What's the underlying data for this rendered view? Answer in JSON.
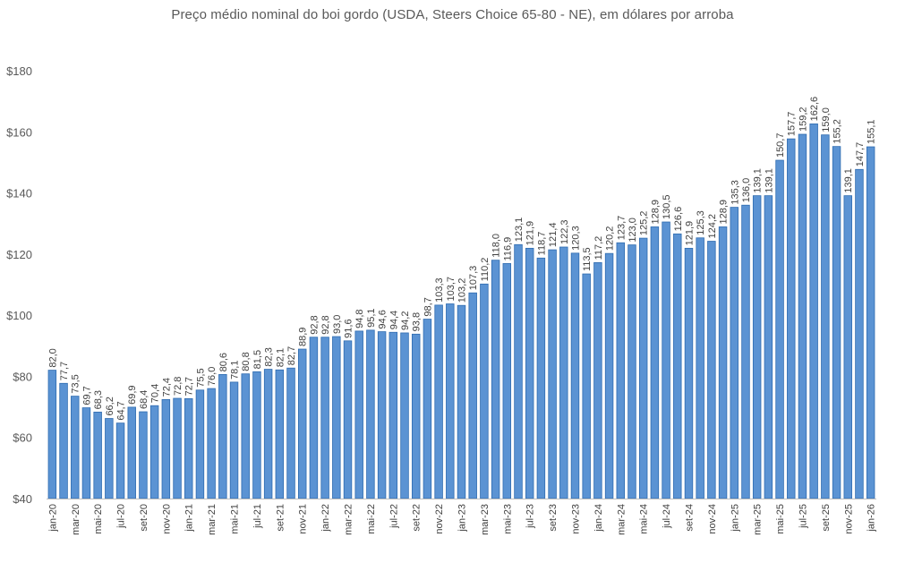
{
  "chart_data": {
    "type": "bar",
    "title": "Preço médio nominal do boi gordo (USDA, Steers Choice 65-80 - NE), em dólares por arroba",
    "xlabel": "",
    "ylabel": "",
    "ylim": [
      40,
      180
    ],
    "yticks": [
      40,
      60,
      80,
      100,
      120,
      140,
      160,
      180
    ],
    "ytick_labels": [
      "$40",
      "$60",
      "$80",
      "$100",
      "$120",
      "$140",
      "$160",
      "$180"
    ],
    "bar_color": "#5B93D3",
    "bar_edge_color": "#2E6BB0",
    "categories": [
      "jan-20",
      "fev-20",
      "mar-20",
      "abr-20",
      "mai-20",
      "jun-20",
      "jul-20",
      "ago-20",
      "set-20",
      "out-20",
      "nov-20",
      "dez-20",
      "jan-21",
      "fev-21",
      "mar-21",
      "abr-21",
      "mai-21",
      "jun-21",
      "jul-21",
      "ago-21",
      "set-21",
      "out-21",
      "nov-21",
      "dez-21",
      "jan-22",
      "fev-22",
      "mar-22",
      "abr-22",
      "mai-22",
      "jun-22",
      "jul-22",
      "ago-22",
      "set-22",
      "out-22",
      "nov-22",
      "dez-22",
      "jan-23",
      "fev-23",
      "mar-23",
      "abr-23",
      "mai-23",
      "jun-23",
      "jul-23",
      "ago-23",
      "set-23",
      "out-23",
      "nov-23",
      "dez-23",
      "jan-24",
      "fev-24",
      "mar-24",
      "abr-24",
      "mai-24",
      "jun-24",
      "jul-24",
      "ago-24",
      "set-24",
      "out-24",
      "nov-24",
      "dez-24",
      "jan-25",
      "fev-25",
      "mar-25",
      "abr-25",
      "mai-25",
      "jun-25",
      "jul-25",
      "ago-25",
      "set-25",
      "out-25",
      "nov-25",
      "dez-25",
      "jan-26"
    ],
    "values": [
      82.0,
      77.7,
      73.5,
      69.7,
      68.3,
      66.2,
      64.7,
      69.9,
      68.4,
      70.4,
      72.4,
      72.8,
      72.7,
      75.5,
      76.0,
      80.6,
      78.1,
      80.8,
      81.5,
      82.3,
      82.1,
      82.7,
      88.9,
      92.8,
      92.8,
      93.0,
      91.6,
      94.8,
      95.1,
      94.6,
      94.4,
      94.2,
      93.8,
      98.7,
      103.3,
      103.7,
      103.2,
      107.3,
      110.2,
      118.0,
      116.9,
      123.1,
      121.9,
      118.7,
      121.4,
      122.3,
      120.3,
      113.5,
      117.2,
      120.2,
      123.7,
      123.0,
      125.2,
      128.9,
      130.5,
      126.6,
      121.9,
      125.3,
      124.2,
      128.9,
      135.3,
      136.0,
      139.1,
      139.1,
      150.7,
      157.7,
      159.2,
      162.6,
      159.0,
      155.2,
      139.1,
      147.7,
      155.1
    ],
    "value_labels": [
      "82,0",
      "77,7",
      "73,5",
      "69,7",
      "68,3",
      "66,2",
      "64,7",
      "69,9",
      "68,4",
      "70,4",
      "72,4",
      "72,8",
      "72,7",
      "75,5",
      "76,0",
      "80,6",
      "78,1",
      "80,8",
      "81,5",
      "82,3",
      "82,1",
      "82,7",
      "88,9",
      "92,8",
      "92,8",
      "93,0",
      "91,6",
      "94,8",
      "95,1",
      "94,6",
      "94,4",
      "94,2",
      "93,8",
      "98,7",
      "103,3",
      "103,7",
      "103,2",
      "107,3",
      "110,2",
      "118,0",
      "116,9",
      "123,1",
      "121,9",
      "118,7",
      "121,4",
      "122,3",
      "120,3",
      "113,5",
      "117,2",
      "120,2",
      "123,7",
      "123,0",
      "125,2",
      "128,9",
      "130,5",
      "126,6",
      "121,9",
      "125,3",
      "124,2",
      "128,9",
      "135,3",
      "136,0",
      "139,1",
      "139,1",
      "150,7",
      "157,7",
      "159,2",
      "162,6",
      "159,0",
      "155,2",
      "139,1",
      "147,7",
      "155,1"
    ],
    "xtick_labels": [
      "jan-20",
      "",
      "mar-20",
      "",
      "mai-20",
      "",
      "jul-20",
      "",
      "set-20",
      "",
      "nov-20",
      "",
      "jan-21",
      "",
      "mar-21",
      "",
      "mai-21",
      "",
      "jul-21",
      "",
      "set-21",
      "",
      "nov-21",
      "",
      "jan-22",
      "",
      "mar-22",
      "",
      "mai-22",
      "",
      "jul-22",
      "",
      "set-22",
      "",
      "nov-22",
      "",
      "jan-23",
      "",
      "mar-23",
      "",
      "mai-23",
      "",
      "jul-23",
      "",
      "set-23",
      "",
      "nov-23",
      "",
      "jan-24",
      "",
      "mar-24",
      "",
      "mai-24",
      "",
      "jul-24",
      "",
      "set-24",
      "",
      "nov-24",
      "",
      "jan-25",
      "",
      "mar-25",
      "",
      "mai-25",
      "",
      "jul-25",
      "",
      "set-25",
      "",
      "nov-25",
      "",
      "jan-26"
    ],
    "grid": false,
    "legend": "none"
  }
}
